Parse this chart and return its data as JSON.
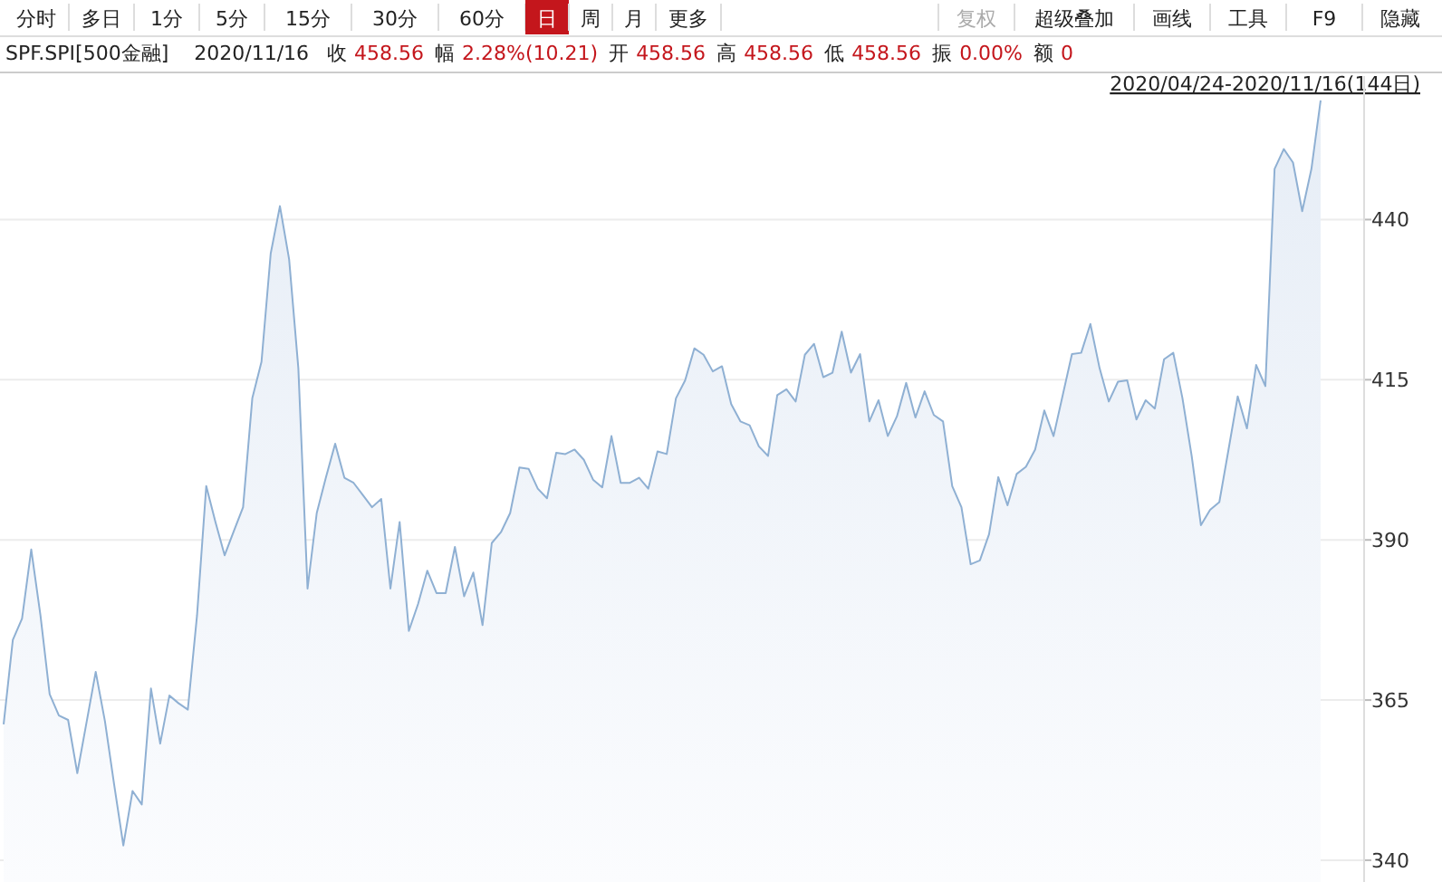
{
  "chart_data": {
    "type": "area",
    "title": "SPF.SPI[500金融]",
    "annotations": [
      "分时",
      "多日",
      "1分",
      "5分",
      "15分",
      "30分",
      "60分",
      "日",
      "周",
      "月",
      "更多",
      "复权",
      "超级叠加",
      "画线",
      "工具",
      "F9",
      "隐藏",
      "2020/11/16",
      "收 458.56",
      "幅 2.28%(10.21)",
      "开 458.56",
      "高 458.56",
      "低 458.56",
      "振 0.00%",
      "额 0",
      "2020/04/24-2020/11/16(144日)"
    ],
    "categories": [
      null,
      null,
      null,
      null,
      null,
      null,
      null,
      null,
      null,
      null,
      null,
      null,
      null,
      null,
      null,
      null,
      null,
      null,
      null,
      null,
      null,
      null,
      null,
      null,
      null,
      null,
      null,
      null,
      null,
      null,
      null,
      null,
      null,
      null,
      null,
      null,
      null,
      null,
      null,
      null,
      null,
      null,
      null,
      null,
      null,
      null,
      null,
      null,
      null,
      null,
      null,
      null,
      null,
      null,
      null,
      null,
      null,
      null,
      null,
      null,
      null,
      null,
      null,
      null,
      null,
      null,
      null,
      null,
      null,
      null,
      null,
      null,
      null,
      null,
      null,
      null,
      null,
      null,
      null,
      null,
      null,
      null,
      null,
      null,
      null,
      null,
      null,
      null,
      null,
      null,
      null,
      null,
      null,
      null,
      null,
      null,
      null,
      null,
      null,
      null,
      null,
      null,
      null,
      null,
      null,
      null,
      null,
      null,
      null,
      null,
      null,
      null,
      null,
      null,
      null,
      null,
      null,
      null,
      null,
      null,
      null,
      null,
      null,
      null,
      null,
      null,
      null,
      null,
      null,
      null,
      null,
      null,
      null,
      null,
      null,
      null,
      null,
      null,
      null,
      null,
      null,
      null,
      null,
      null
    ],
    "series": [
      {
        "color": "#8fb0d3",
        "values": [
          361.2,
          374.4,
          377.7,
          388.5,
          378.2,
          365.9,
          362.6,
          361.9,
          353.6,
          361.5,
          369.4,
          361.7,
          351.8,
          342.3,
          350.8,
          348.7,
          366.8,
          358.2,
          365.7,
          364.5,
          363.5,
          378.2,
          398.4,
          392.8,
          387.6,
          391.4,
          395.1,
          412.1,
          417.8,
          434.7,
          442.1,
          433.8,
          416.8,
          382.4,
          394.2,
          399.8,
          405.0,
          399.7,
          398.9,
          397.0,
          395.1,
          396.4,
          382.4,
          392.8,
          375.8,
          380.0,
          385.2,
          381.7,
          381.7,
          388.9,
          381.2,
          384.9,
          376.7,
          389.5,
          391.2,
          394.2,
          401.3,
          401.1,
          398.0,
          396.5,
          403.6,
          403.4,
          404.1,
          402.5,
          399.4,
          398.2,
          406.2,
          398.9,
          398.9,
          399.7,
          398.0,
          403.8,
          403.4,
          412.1,
          414.9,
          419.9,
          418.9,
          416.3,
          417.1,
          411.2,
          408.5,
          407.9,
          404.6,
          403.1,
          412.6,
          413.5,
          411.6,
          418.9,
          420.6,
          415.4,
          416.1,
          422.5,
          416.1,
          419.0,
          408.5,
          411.8,
          406.2,
          409.3,
          414.5,
          409.1,
          413.2,
          409.5,
          408.5,
          398.4,
          395.1,
          386.2,
          386.8,
          390.9,
          399.8,
          395.4,
          400.3,
          401.4,
          404.1,
          410.2,
          406.2,
          412.6,
          419.0,
          419.2,
          423.7,
          416.8,
          411.6,
          414.7,
          414.9,
          408.8,
          411.8,
          410.5,
          418.2,
          419.2,
          412.1,
          403.1,
          392.3,
          394.7,
          395.9,
          404.1,
          412.4,
          407.4,
          417.3,
          414.0,
          447.9,
          451.0,
          448.9,
          441.3,
          447.9,
          458.6
        ]
      }
    ],
    "ylim": [
      336.6,
      462.4
    ],
    "yticks": [
      340,
      365,
      390,
      415,
      440
    ],
    "grid": "y"
  }
}
